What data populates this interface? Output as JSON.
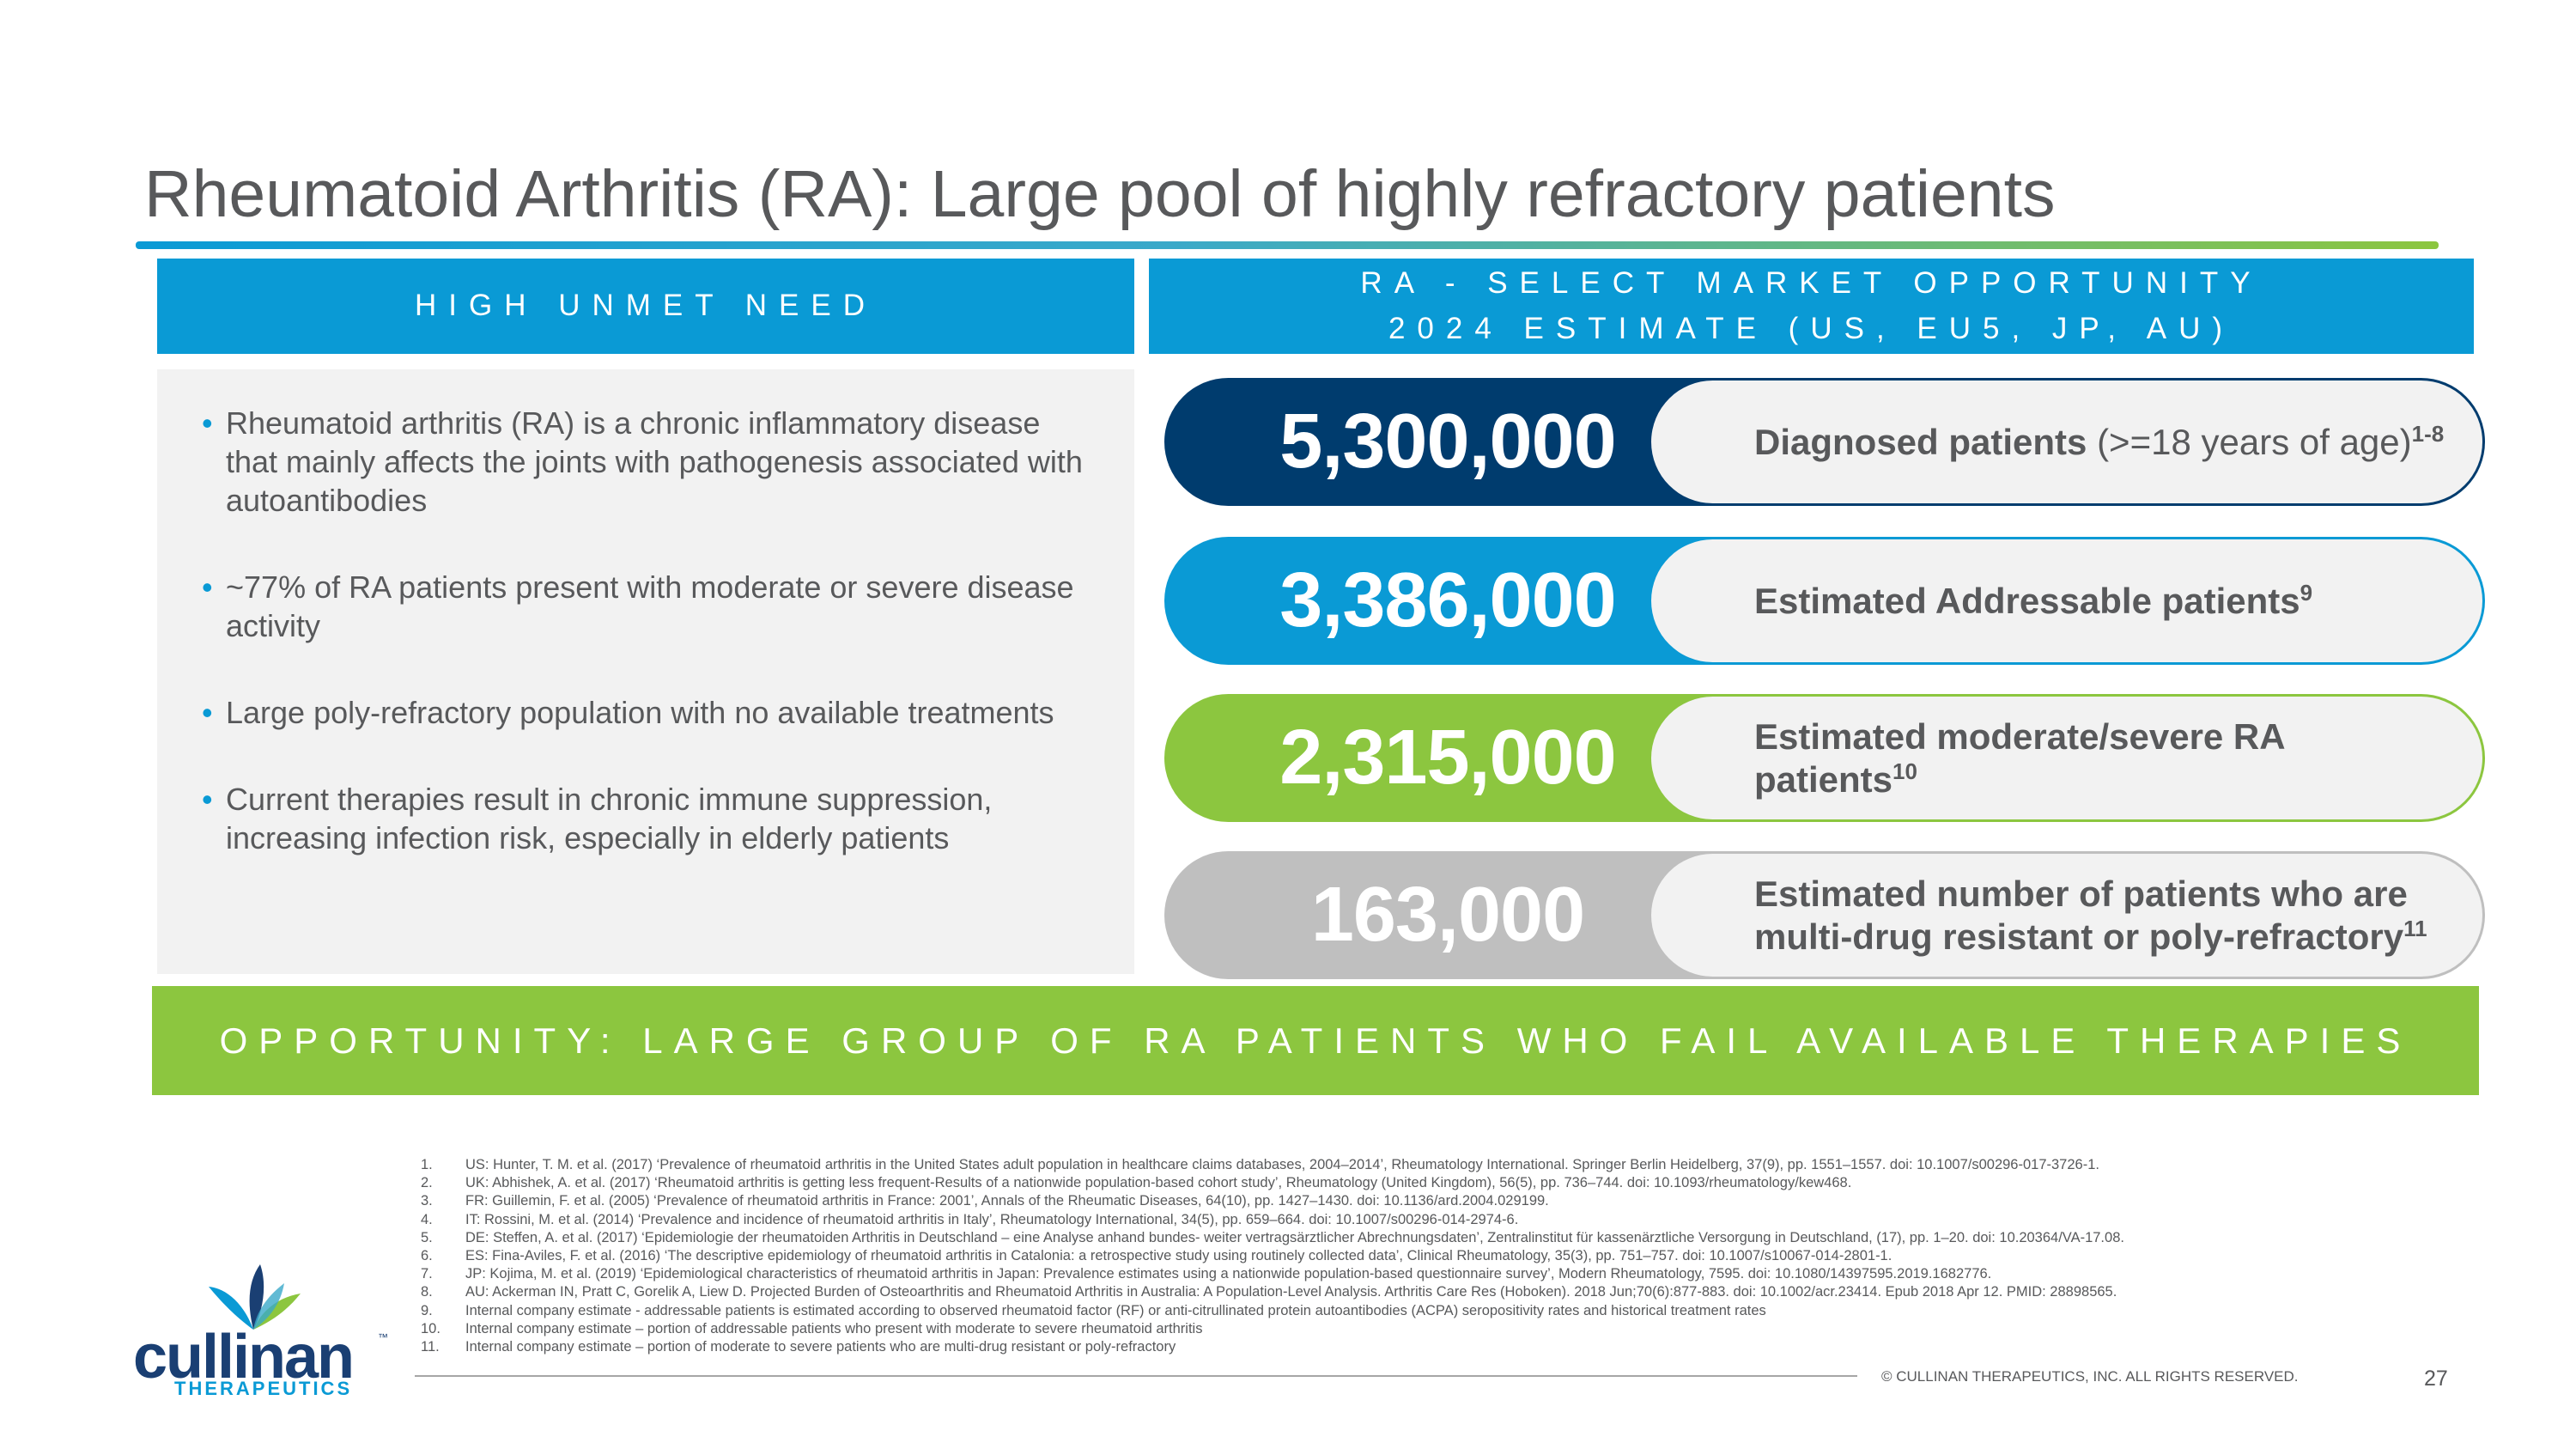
{
  "title": "Rheumatoid Arthritis (RA): Large pool of highly refractory patients",
  "left_header": "HIGH UNMET NEED",
  "right_header": {
    "line1": "RA - SELECT MARKET OPPORTUNITY",
    "line2": "2024 ESTIMATE (US, EU5, JP, AU)"
  },
  "bullets": [
    "Rheumatoid arthritis (RA) is a chronic inflammatory disease that mainly affects the joints with pathogenesis associated with autoantibodies",
    "~77% of RA patients present with moderate or severe disease activity",
    "Large poly-refractory population with no available treatments",
    "Current therapies result in chronic immune suppression, increasing infection risk, especially in elderly patients"
  ],
  "pills": [
    {
      "value": "5,300,000",
      "label_bold": "Diagnosed patients",
      "label_rest": " (>=18 years of age)",
      "sup": "1-8",
      "color": "#003c6e"
    },
    {
      "value": "3,386,000",
      "label_bold": "Estimated Addressable patients",
      "label_rest": "",
      "sup": "9",
      "color": "#0a9ad5"
    },
    {
      "value": "2,315,000",
      "label_bold": "Estimated moderate/severe RA patients",
      "label_rest": "",
      "sup": "10",
      "color": "#8cc63f"
    },
    {
      "value": "163,000",
      "label_bold": "Estimated number of patients who are multi-drug resistant or poly-refractory",
      "label_rest": "",
      "sup": "11",
      "color": "#bfbfbf"
    }
  ],
  "banner": "OPPORTUNITY: LARGE GROUP OF RA PATIENTS WHO FAIL AVAILABLE THERAPIES",
  "references": [
    {
      "n": "1.",
      "text": "US: Hunter, T. M. et al. (2017) ‘Prevalence of rheumatoid arthritis in the United States adult population in healthcare claims databases, 2004–2014’, Rheumatology International. Springer Berlin Heidelberg, 37(9), pp. 1551–1557. doi: 10.1007/s00296-017-3726-1."
    },
    {
      "n": "2.",
      "text": "UK: Abhishek, A. et al. (2017) ‘Rheumatoid arthritis is getting less frequent-Results of a nationwide population-based cohort study’, Rheumatology (United Kingdom), 56(5), pp. 736–744. doi: 10.1093/rheumatology/kew468."
    },
    {
      "n": "3.",
      "text": "FR: Guillemin, F. et al. (2005) ‘Prevalence of rheumatoid arthritis in France: 2001’, Annals of the Rheumatic Diseases, 64(10), pp. 1427–1430. doi: 10.1136/ard.2004.029199."
    },
    {
      "n": "4.",
      "text": "IT: Rossini, M. et al. (2014) ‘Prevalence and incidence of rheumatoid arthritis in Italy’, Rheumatology International, 34(5), pp. 659–664. doi: 10.1007/s00296-014-2974-6."
    },
    {
      "n": "5.",
      "text": "DE: Steffen, A. et al. (2017) ‘Epidemiologie der rheumatoiden Arthritis in Deutschland – eine Analyse anhand bundes- weiter vertragsärztlicher Abrechnungsdaten’, Zentralinstitut für kassenärztliche Versorgung in Deutschland, (17), pp. 1–20. doi: 10.20364/VA-17.08."
    },
    {
      "n": "6.",
      "text": "ES: Fina-Aviles, F. et al. (2016) ‘The descriptive epidemiology of rheumatoid arthritis in Catalonia: a retrospective study using routinely collected data’, Clinical Rheumatology, 35(3), pp. 751–757. doi: 10.1007/s10067-014-2801-1."
    },
    {
      "n": "7.",
      "text": "JP: Kojima, M. et al. (2019) ‘Epidemiological characteristics of rheumatoid arthritis in Japan: Prevalence estimates using a nationwide population-based questionnaire survey’, Modern Rheumatology, 7595. doi: 10.1080/14397595.2019.1682776."
    },
    {
      "n": "8.",
      "text": "AU: Ackerman IN, Pratt C, Gorelik A, Liew D. Projected Burden of Osteoarthritis and Rheumatoid Arthritis in Australia: A Population-Level Analysis. Arthritis Care Res (Hoboken). 2018 Jun;70(6):877-883. doi: 10.1002/acr.23414. Epub 2018 Apr 12. PMID: 28898565."
    },
    {
      "n": "9.",
      "text": "Internal company estimate - addressable patients is estimated according to observed rheumatoid factor (RF) or anti-citrullinated protein autoantibodies (ACPA) seropositivity rates and historical treatment rates"
    },
    {
      "n": "10.",
      "text": "Internal company estimate – portion of addressable patients who present with moderate to severe rheumatoid arthritis"
    },
    {
      "n": "11.",
      "text": "Internal company estimate – portion of moderate to severe patients who are multi-drug resistant or poly-refractory"
    }
  ],
  "copyright": "© CULLINAN THERAPEUTICS, INC. ALL RIGHTS RESERVED.",
  "page_number": "27",
  "logo": {
    "word": "cullinan",
    "tm": "™",
    "sub": "THERAPEUTICS"
  }
}
